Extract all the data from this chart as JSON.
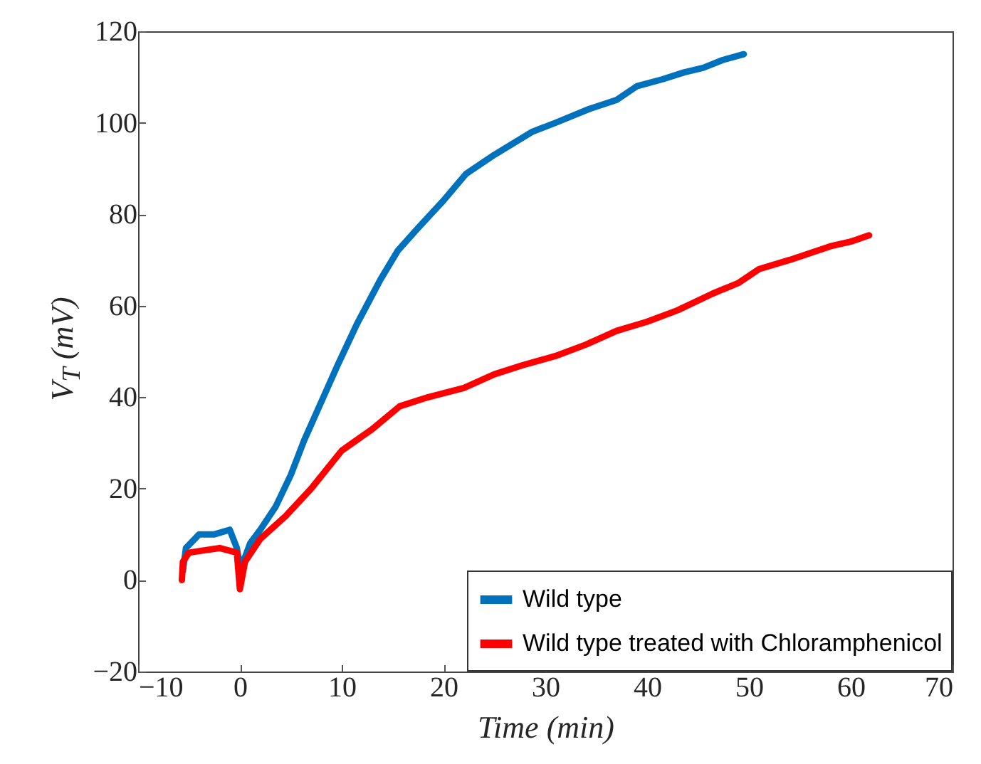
{
  "chart_data": {
    "type": "line",
    "xlabel": "Time (min)",
    "ylabel": "V$_{T}$ (mV)",
    "xlim": [
      -10,
      70
    ],
    "ylim": [
      -20,
      120
    ],
    "xticks": [
      -10,
      0,
      10,
      20,
      30,
      40,
      50,
      60,
      70
    ],
    "yticks": [
      -20,
      0,
      20,
      40,
      60,
      80,
      100,
      120
    ],
    "grid": false,
    "legend": "bottom right",
    "line_style": "solid",
    "marker": "none",
    "series": [
      {
        "name": "Wild type",
        "color": "#0072bd",
        "x": [
          -5.6,
          -5.3,
          -4,
          -2.5,
          -1,
          -0.3,
          0,
          0.5,
          1,
          2,
          3.5,
          5,
          6.3,
          8,
          9.6,
          11.5,
          13.8,
          15.5,
          17.5,
          20,
          22.2,
          25,
          28.7,
          31,
          34.3,
          37,
          39,
          41.5,
          43.6,
          45.5,
          47.4,
          49.5
        ],
        "values": [
          2,
          7,
          10,
          10,
          11,
          7,
          3,
          5,
          8,
          11,
          16,
          23,
          30.5,
          39,
          47,
          56,
          65.7,
          72,
          77,
          83,
          88.8,
          93,
          98,
          100,
          103,
          105,
          108,
          109.5,
          111,
          112,
          113.7,
          115
        ]
      },
      {
        "name": "Wild type treated with Chloramphenicol",
        "color": "#ff0000",
        "x": [
          -5.7,
          -5.6,
          -5,
          -3.5,
          -2,
          -0.3,
          0,
          0.5,
          2,
          4.5,
          7,
          10,
          13,
          15.7,
          18.5,
          22,
          25,
          27.8,
          31,
          34,
          37,
          40,
          43,
          46.4,
          49,
          51,
          54,
          58,
          60,
          61.8
        ],
        "values": [
          0,
          4,
          6,
          6.5,
          7,
          6,
          -2,
          4,
          9,
          14,
          20,
          28.3,
          33,
          38,
          40,
          42,
          45,
          47,
          49,
          51.5,
          54.5,
          56.5,
          59,
          62.6,
          65,
          68,
          70,
          73,
          74,
          75.4
        ]
      }
    ]
  }
}
